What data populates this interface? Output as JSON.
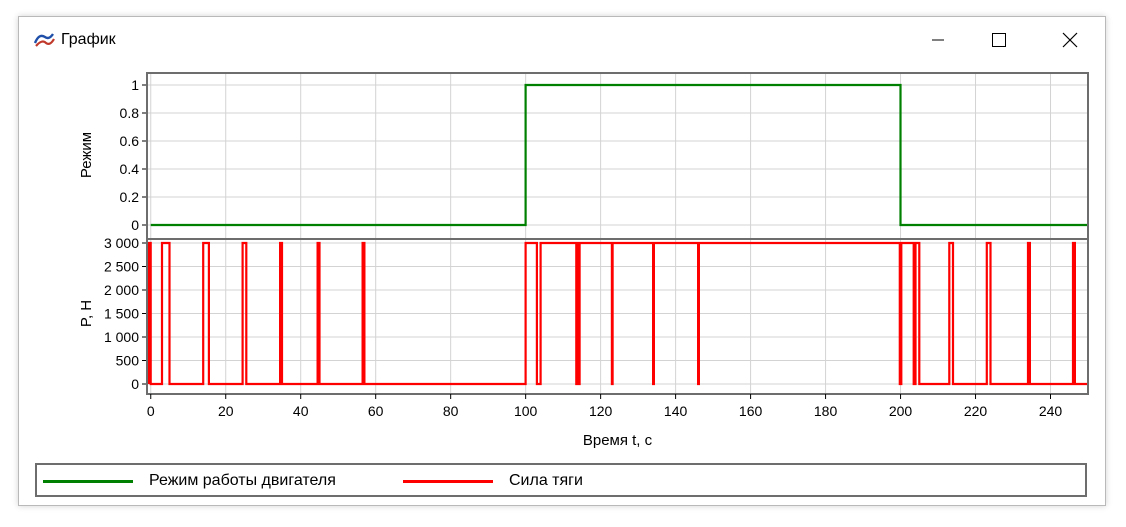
{
  "window": {
    "title": "График",
    "controls": {
      "minimize": "minimize",
      "maximize": "maximize",
      "close": "close"
    }
  },
  "chart_data": {
    "type": "line",
    "xlabel": "Время t, с",
    "xlim": [
      -1,
      250
    ],
    "xticks": [
      0,
      20,
      40,
      60,
      80,
      100,
      120,
      140,
      160,
      180,
      200,
      220,
      240
    ],
    "xtick_labels": [
      "0",
      "20",
      "40",
      "60",
      "80",
      "100",
      "120",
      "140",
      "160",
      "180",
      "200",
      "220",
      "240"
    ],
    "grid": true,
    "legend_position": "bottom",
    "panels": [
      {
        "ylabel": "Режим",
        "ylim": [
          0,
          1
        ],
        "yticks": [
          0,
          0.2,
          0.4,
          0.6,
          0.8,
          1
        ],
        "ytick_labels": [
          "0",
          "0.2",
          "0.4",
          "0.6",
          "0.8",
          "1"
        ],
        "series": [
          {
            "name": "Режим работы двигателя",
            "color": "#008000",
            "step": true,
            "x": [
              0,
              100,
              100,
              200,
              200,
              250
            ],
            "y": [
              0,
              0,
              1,
              1,
              0,
              0
            ]
          }
        ]
      },
      {
        "ylabel": "P, Н",
        "ylim": [
          0,
          3000
        ],
        "yticks": [
          0,
          500,
          1000,
          1500,
          2000,
          2500,
          3000
        ],
        "ytick_labels": [
          "0",
          "500",
          "1 000",
          "1 500",
          "2 000",
          "2 500",
          "3 000"
        ],
        "series": [
          {
            "name": "Сила тяги",
            "color": "#ff0000",
            "step": true,
            "pulses": [
              [
                -0.5,
                0
              ],
              [
                3,
                5
              ],
              [
                14,
                15.5
              ],
              [
                24.5,
                25.5
              ],
              [
                34.5,
                35
              ],
              [
                44.5,
                45
              ],
              [
                56.5,
                57
              ],
              [
                100,
                103
              ],
              [
                104,
                246.5
              ]
            ],
            "gaps": [
              [
                113.5,
                113.7
              ],
              [
                114.2,
                114.4
              ],
              [
                123,
                123.2
              ],
              [
                134,
                134.2
              ],
              [
                146,
                146.2
              ],
              [
                199.8,
                200.2
              ],
              [
                203.5,
                204
              ],
              [
                205,
                213
              ],
              [
                214,
                223
              ],
              [
                224,
                234
              ],
              [
                234.5,
                246
              ]
            ]
          }
        ]
      }
    ]
  },
  "legend": {
    "items": [
      {
        "label": "Режим работы двигателя",
        "color": "#008000"
      },
      {
        "label": "Сила тяги",
        "color": "#ff0000"
      }
    ]
  }
}
